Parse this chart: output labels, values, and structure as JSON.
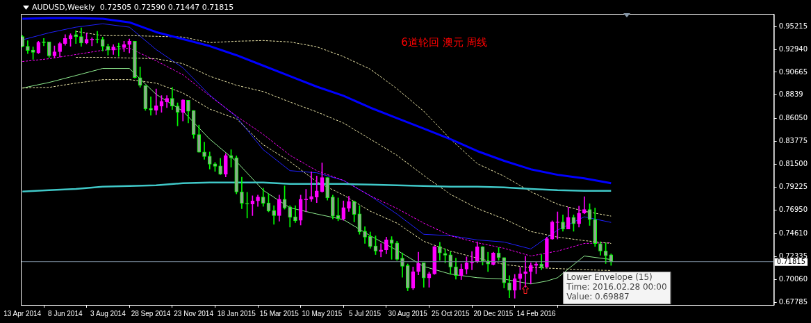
{
  "chart_data": {
    "type": "candlestick",
    "title": "AUDUSD,Weekly  0.72505 0.72590 0.71447 0.71815",
    "annotations": [
      "6道轮回 澳元 周线",
      "Lower Envelope (15)\nTime: 2016.02.28 00:00\nValue: 0.69887"
    ],
    "x": [
      "2014-04-13",
      "2014-04-20",
      "2014-04-27",
      "2014-05-04",
      "2014-05-11",
      "2014-05-18",
      "2014-05-25",
      "2014-06-01",
      "2014-06-08",
      "2014-06-15",
      "2014-06-22",
      "2014-06-29",
      "2014-07-06",
      "2014-07-13",
      "2014-07-20",
      "2014-07-27",
      "2014-08-03",
      "2014-08-10",
      "2014-08-17",
      "2014-08-24",
      "2014-08-31",
      "2014-09-07",
      "2014-09-14",
      "2014-09-21",
      "2014-09-28",
      "2014-10-05",
      "2014-10-12",
      "2014-10-19",
      "2014-10-26",
      "2014-11-02",
      "2014-11-09",
      "2014-11-16",
      "2014-11-23",
      "2014-11-30",
      "2014-12-07",
      "2014-12-14",
      "2014-12-21",
      "2014-12-28",
      "2015-01-04",
      "2015-01-11",
      "2015-01-18",
      "2015-01-25",
      "2015-02-01",
      "2015-02-08",
      "2015-02-15",
      "2015-02-22",
      "2015-03-01",
      "2015-03-08",
      "2015-03-15",
      "2015-03-22",
      "2015-03-29",
      "2015-04-05",
      "2015-04-12",
      "2015-04-19",
      "2015-04-26",
      "2015-05-03",
      "2015-05-10",
      "2015-05-17",
      "2015-05-24",
      "2015-05-31",
      "2015-06-07",
      "2015-06-14",
      "2015-06-21",
      "2015-06-28",
      "2015-07-05",
      "2015-07-12",
      "2015-07-19",
      "2015-07-26",
      "2015-08-02",
      "2015-08-09",
      "2015-08-16",
      "2015-08-23",
      "2015-08-30",
      "2015-09-06",
      "2015-09-13",
      "2015-09-20",
      "2015-09-27",
      "2015-10-04",
      "2015-10-11",
      "2015-10-18",
      "2015-10-25",
      "2015-11-01",
      "2015-11-08",
      "2015-11-15",
      "2015-11-22",
      "2015-11-29",
      "2015-12-06",
      "2015-12-13",
      "2015-12-20",
      "2015-12-27",
      "2016-01-03",
      "2016-01-10",
      "2016-01-17",
      "2016-01-24",
      "2016-01-31",
      "2016-02-07",
      "2016-02-14",
      "2016-02-21",
      "2016-02-28",
      "2016-03-06",
      "2016-03-13",
      "2016-03-20",
      "2016-03-27",
      "2016-04-03",
      "2016-04-10",
      "2016-04-17",
      "2016-04-24",
      "2016-05-01",
      "2016-05-08",
      "2016-05-15",
      "2016-05-22"
    ],
    "ohlc": [
      [
        0.9422,
        0.9433,
        0.9318,
        0.9325
      ],
      [
        0.9325,
        0.938,
        0.9252,
        0.9283
      ],
      [
        0.9287,
        0.9318,
        0.9194,
        0.9264
      ],
      [
        0.9259,
        0.9375,
        0.9252,
        0.9364
      ],
      [
        0.9365,
        0.9403,
        0.9329,
        0.9361
      ],
      [
        0.9368,
        0.9368,
        0.9213,
        0.9229
      ],
      [
        0.9229,
        0.9329,
        0.9208,
        0.9269
      ],
      [
        0.9271,
        0.9364,
        0.9217,
        0.9352
      ],
      [
        0.9352,
        0.944,
        0.9334,
        0.9403
      ],
      [
        0.9398,
        0.945,
        0.9325,
        0.9433
      ],
      [
        0.944,
        0.948,
        0.9352,
        0.9422
      ],
      [
        0.9422,
        0.9508,
        0.9325,
        0.9357
      ],
      [
        0.9357,
        0.9457,
        0.9348,
        0.9394
      ],
      [
        0.9389,
        0.941,
        0.9329,
        0.9391
      ],
      [
        0.9396,
        0.9473,
        0.9357,
        0.9391
      ],
      [
        0.9394,
        0.9417,
        0.9278,
        0.9325
      ],
      [
        0.9325,
        0.9348,
        0.9236,
        0.9287
      ],
      [
        0.9287,
        0.9341,
        0.9243,
        0.9318
      ],
      [
        0.9322,
        0.9357,
        0.9224,
        0.9318
      ],
      [
        0.9313,
        0.9375,
        0.9271,
        0.9341
      ],
      [
        0.9341,
        0.9398,
        0.9259,
        0.9375
      ],
      [
        0.9375,
        0.9375,
        0.9008,
        0.9013
      ],
      [
        0.9013,
        0.912,
        0.8916,
        0.8935
      ],
      [
        0.8935,
        0.8935,
        0.8686,
        0.8702
      ],
      [
        0.8707,
        0.8823,
        0.8639,
        0.8691
      ],
      [
        0.8688,
        0.89,
        0.8644,
        0.8733
      ],
      [
        0.873,
        0.8834,
        0.8667,
        0.8777
      ],
      [
        0.8772,
        0.8834,
        0.8714,
        0.8807
      ],
      [
        0.8807,
        0.8916,
        0.8695,
        0.873
      ],
      [
        0.873,
        0.8761,
        0.8533,
        0.8667
      ],
      [
        0.8667,
        0.8795,
        0.8582,
        0.8791
      ],
      [
        0.8788,
        0.8788,
        0.8563,
        0.8679
      ],
      [
        0.8686,
        0.8686,
        0.8408,
        0.8447
      ],
      [
        0.8447,
        0.854,
        0.827,
        0.827
      ],
      [
        0.8273,
        0.8371,
        0.8199,
        0.8227
      ],
      [
        0.8231,
        0.8273,
        0.8103,
        0.8152
      ],
      [
        0.8155,
        0.8169,
        0.808,
        0.8131
      ],
      [
        0.8134,
        0.8211,
        0.8048,
        0.8053
      ],
      [
        0.8053,
        0.8257,
        0.8025,
        0.8238
      ],
      [
        0.8238,
        0.8296,
        0.8122,
        0.8215
      ],
      [
        0.8215,
        0.8234,
        0.7856,
        0.7874
      ],
      [
        0.7876,
        0.8023,
        0.7709,
        0.7762
      ],
      [
        0.7762,
        0.7872,
        0.7616,
        0.7755
      ],
      [
        0.7755,
        0.7837,
        0.764,
        0.7786
      ],
      [
        0.7786,
        0.7844,
        0.7732,
        0.7825
      ],
      [
        0.7825,
        0.7913,
        0.7732,
        0.7762
      ],
      [
        0.7767,
        0.7856,
        0.7677,
        0.7686
      ],
      [
        0.7691,
        0.7739,
        0.7553,
        0.764
      ],
      [
        0.764,
        0.7844,
        0.7584,
        0.7802
      ],
      [
        0.7802,
        0.7936,
        0.7704,
        0.7716
      ],
      [
        0.7727,
        0.7739,
        0.7526,
        0.7623
      ],
      [
        0.7628,
        0.7739,
        0.757,
        0.7588
      ],
      [
        0.7593,
        0.7844,
        0.7546,
        0.7802
      ],
      [
        0.7797,
        0.7901,
        0.7677,
        0.7804
      ],
      [
        0.7804,
        0.8076,
        0.7779,
        0.783
      ],
      [
        0.7825,
        0.8034,
        0.7769,
        0.7885
      ],
      [
        0.7879,
        0.8164,
        0.7872,
        0.8018
      ],
      [
        0.8018,
        0.8018,
        0.7793,
        0.7816
      ],
      [
        0.7825,
        0.7844,
        0.7607,
        0.7635
      ],
      [
        0.7642,
        0.7816,
        0.7588,
        0.7612
      ],
      [
        0.7607,
        0.7786,
        0.7593,
        0.772
      ],
      [
        0.7713,
        0.7832,
        0.7681,
        0.7781
      ],
      [
        0.7781,
        0.7786,
        0.7577,
        0.7651
      ],
      [
        0.7658,
        0.7739,
        0.7454,
        0.7477
      ],
      [
        0.7484,
        0.753,
        0.7363,
        0.7426
      ],
      [
        0.7433,
        0.7477,
        0.7315,
        0.7333
      ],
      [
        0.7338,
        0.7438,
        0.7252,
        0.7287
      ],
      [
        0.7282,
        0.7361,
        0.7229,
        0.7299
      ],
      [
        0.7299,
        0.7426,
        0.7259,
        0.7398
      ],
      [
        0.7398,
        0.7431,
        0.7205,
        0.7363
      ],
      [
        0.7368,
        0.7384,
        0.7194,
        0.7205
      ],
      [
        0.7217,
        0.7268,
        0.7027,
        0.7136
      ],
      [
        0.7143,
        0.7159,
        0.6892,
        0.692
      ],
      [
        0.692,
        0.7129,
        0.6904,
        0.7083
      ],
      [
        0.7083,
        0.7275,
        0.705,
        0.7163
      ],
      [
        0.717,
        0.717,
        0.6927,
        0.702
      ],
      [
        0.702,
        0.7078,
        0.6927,
        0.7062
      ],
      [
        0.7059,
        0.7333,
        0.7055,
        0.7333
      ],
      [
        0.7333,
        0.7375,
        0.7194,
        0.7268
      ],
      [
        0.7264,
        0.731,
        0.717,
        0.7245
      ],
      [
        0.725,
        0.728,
        0.7055,
        0.7129
      ],
      [
        0.7131,
        0.7217,
        0.7008,
        0.7043
      ],
      [
        0.7043,
        0.7159,
        0.7003,
        0.7108
      ],
      [
        0.7108,
        0.7229,
        0.7059,
        0.717
      ],
      [
        0.717,
        0.7282,
        0.7101,
        0.718
      ],
      [
        0.718,
        0.7379,
        0.717,
        0.7329
      ],
      [
        0.7329,
        0.7333,
        0.7148,
        0.7187
      ],
      [
        0.7187,
        0.7275,
        0.7083,
        0.7157
      ],
      [
        0.7152,
        0.7275,
        0.7148,
        0.7268
      ],
      [
        0.7268,
        0.7322,
        0.7194,
        0.7222
      ],
      [
        0.7222,
        0.7222,
        0.692,
        0.6971
      ],
      [
        0.6971,
        0.7043,
        0.6822,
        0.6897
      ],
      [
        0.6897,
        0.7055,
        0.6818,
        0.7013
      ],
      [
        0.7013,
        0.7125,
        0.6904,
        0.7062
      ],
      [
        0.7062,
        0.7236,
        0.6927,
        0.7083
      ],
      [
        0.7083,
        0.717,
        0.6962,
        0.7147
      ],
      [
        0.7143,
        0.7177,
        0.7062,
        0.7159
      ],
      [
        0.7159,
        0.7252,
        0.7101,
        0.7129
      ],
      [
        0.7129,
        0.7426,
        0.7124,
        0.741
      ],
      [
        0.7407,
        0.7588,
        0.7403,
        0.7577
      ],
      [
        0.757,
        0.7677,
        0.7407,
        0.7577
      ],
      [
        0.7577,
        0.7647,
        0.7484,
        0.7507
      ],
      [
        0.7507,
        0.7723,
        0.7507,
        0.7623
      ],
      [
        0.7623,
        0.7647,
        0.7484,
        0.7558
      ],
      [
        0.7558,
        0.7734,
        0.7526,
        0.7665
      ],
      [
        0.7665,
        0.7828,
        0.7658,
        0.77
      ],
      [
        0.77,
        0.7758,
        0.7542,
        0.76
      ],
      [
        0.76,
        0.7716,
        0.7333,
        0.7361
      ],
      [
        0.7361,
        0.7379,
        0.7245,
        0.7287
      ],
      [
        0.7287,
        0.7368,
        0.7163,
        0.724
      ],
      [
        0.72505,
        0.7259,
        0.71447,
        0.71815
      ]
    ],
    "series": [
      {
        "type": "line",
        "color": "#0000ff",
        "x": [
          "2014-04-13",
          "2014-05-18",
          "2014-06-22",
          "2014-07-27",
          "2014-08-31",
          "2014-10-05",
          "2014-11-09",
          "2014-12-14",
          "2015-01-18",
          "2015-02-22",
          "2015-03-29",
          "2015-05-03",
          "2015-06-07",
          "2015-07-12",
          "2015-08-16",
          "2015-09-20",
          "2015-10-25",
          "2015-11-29",
          "2016-01-03",
          "2016-02-07",
          "2016-03-13",
          "2016-04-17",
          "2016-05-22"
        ],
        "values": [
          0.9598,
          0.9605,
          0.9605,
          0.9598,
          0.9563,
          0.9466,
          0.9396,
          0.9327,
          0.9236,
          0.9132,
          0.9027,
          0.8923,
          0.8832,
          0.8714,
          0.861,
          0.8505,
          0.8401,
          0.8282,
          0.8185,
          0.8101,
          0.8046,
          0.8011,
          0.7962
        ]
      },
      {
        "type": "line",
        "color": "#40c8c8",
        "x": [
          "2014-04-13",
          "2014-05-18",
          "2014-06-22",
          "2014-07-27",
          "2014-08-31",
          "2014-10-05",
          "2014-11-09",
          "2014-12-14",
          "2015-01-18",
          "2015-02-22",
          "2015-03-29",
          "2015-05-03",
          "2015-06-07",
          "2015-07-12",
          "2015-08-16",
          "2015-09-20",
          "2015-10-25",
          "2015-11-29",
          "2016-01-03",
          "2016-02-07",
          "2016-03-13",
          "2016-04-17",
          "2016-05-22"
        ],
        "values": [
          0.7879,
          0.7893,
          0.7906,
          0.7927,
          0.7934,
          0.7941,
          0.7962,
          0.7969,
          0.7969,
          0.7969,
          0.7955,
          0.7955,
          0.7955,
          0.7948,
          0.7941,
          0.7934,
          0.7927,
          0.7927,
          0.792,
          0.7906,
          0.7893,
          0.7886,
          0.7886
        ]
      },
      {
        "type": "line",
        "color": "#eee8aa",
        "line_style": "dashed",
        "x": [
          "2014-06-22",
          "2014-07-27",
          "2014-08-31",
          "2014-10-05",
          "2014-11-09",
          "2014-12-14",
          "2015-01-18",
          "2015-02-22",
          "2015-03-29",
          "2015-05-03",
          "2015-06-07",
          "2015-07-12",
          "2015-08-16",
          "2015-09-20",
          "2015-10-25",
          "2015-11-29",
          "2016-01-03",
          "2016-02-07",
          "2016-03-13",
          "2016-04-17",
          "2016-05-22"
        ],
        "values": [
          0.9473,
          0.9431,
          0.9431,
          0.9424,
          0.9417,
          0.9361,
          0.9375,
          0.9382,
          0.9368,
          0.932,
          0.9222,
          0.9097,
          0.8902,
          0.8679,
          0.8401,
          0.8157,
          0.8032,
          0.7878,
          0.7753,
          0.7683,
          0.7635
        ]
      },
      {
        "type": "line",
        "color": "#eee8aa",
        "line_style": "dashed",
        "x": [
          "2014-06-22",
          "2014-07-27",
          "2014-08-31",
          "2014-10-05",
          "2014-11-09",
          "2014-12-14",
          "2015-01-18",
          "2015-02-22",
          "2015-03-29",
          "2015-05-03",
          "2015-06-07",
          "2015-07-12",
          "2015-08-16",
          "2015-09-20",
          "2015-10-25",
          "2015-11-29",
          "2016-01-03",
          "2016-02-07",
          "2016-03-13",
          "2016-04-17",
          "2016-05-22"
        ],
        "values": [
          0.9215,
          0.9215,
          0.9208,
          0.9201,
          0.9152,
          0.9027,
          0.8937,
          0.8874,
          0.877,
          0.8672,
          0.8561,
          0.8401,
          0.824,
          0.8039,
          0.7851,
          0.7711,
          0.7607,
          0.7482,
          0.7426,
          0.7391,
          0.7363
        ]
      },
      {
        "type": "line",
        "color": "#eee8aa",
        "line_style": "dashed",
        "x": [
          "2014-04-13",
          "2014-05-18",
          "2014-06-22",
          "2014-07-27",
          "2014-08-31",
          "2014-10-05",
          "2014-11-09",
          "2014-12-14",
          "2015-01-18",
          "2015-02-22",
          "2015-03-29",
          "2015-05-03",
          "2015-06-07",
          "2015-07-12",
          "2015-08-16",
          "2015-09-20",
          "2015-10-25",
          "2015-11-29",
          "2016-01-03",
          "2016-02-03",
          "2016-03-13",
          "2016-04-17",
          "2016-05-22"
        ],
        "values": [
          0.8909,
          0.8916,
          0.8958,
          0.8993,
          0.8993,
          0.8958,
          0.886,
          0.87,
          0.8603,
          0.8345,
          0.8178,
          0.7976,
          0.7844,
          0.7684,
          0.7565,
          0.7384,
          0.7287,
          0.7217,
          0.7154,
          0.7126,
          0.7113,
          0.7101,
          0.7094
        ]
      },
      {
        "type": "line",
        "color": "#ff00ff",
        "line_style": "dashed",
        "x": [
          "2014-04-13",
          "2014-05-18",
          "2014-06-22",
          "2014-07-27",
          "2014-08-31",
          "2014-10-05",
          "2014-11-09",
          "2014-12-14",
          "2015-01-18",
          "2015-02-22",
          "2015-03-29",
          "2015-05-03",
          "2015-06-07",
          "2015-07-12",
          "2015-08-16",
          "2015-09-20",
          "2015-10-25",
          "2015-11-29",
          "2016-01-03",
          "2016-02-07",
          "2016-03-13",
          "2016-04-17",
          "2016-05-22"
        ],
        "values": [
          0.9173,
          0.9201,
          0.9243,
          0.9285,
          0.9306,
          0.918,
          0.9041,
          0.8832,
          0.863,
          0.8449,
          0.824,
          0.8087,
          0.799,
          0.7837,
          0.7711,
          0.7565,
          0.744,
          0.737,
          0.7315,
          0.7238,
          0.7287,
          0.7363,
          0.737
        ]
      },
      {
        "type": "line",
        "color": "#2020ff",
        "x": [
          "2014-04-13",
          "2014-05-18",
          "2014-06-22",
          "2014-07-27",
          "2014-08-31",
          "2014-10-05",
          "2014-11-09",
          "2014-12-14",
          "2015-01-18",
          "2015-02-22",
          "2015-03-29",
          "2015-05-03",
          "2015-06-07",
          "2015-07-12",
          "2015-08-16",
          "2015-09-20",
          "2015-10-25",
          "2015-11-29",
          "2016-01-03",
          "2016-02-07",
          "2016-03-13",
          "2016-04-17",
          "2016-05-22"
        ],
        "values": [
          0.9389,
          0.9459,
          0.9515,
          0.9549,
          0.9515,
          0.9292,
          0.9111,
          0.8839,
          0.8623,
          0.8296,
          0.8087,
          0.8066,
          0.799,
          0.7837,
          0.7655,
          0.7454,
          0.744,
          0.7398,
          0.7377,
          0.7308,
          0.7496,
          0.7628,
          0.7572
        ]
      },
      {
        "type": "line",
        "color": "#90ee90",
        "x": [
          "2014-04-13",
          "2014-05-18",
          "2014-06-22",
          "2014-07-27",
          "2014-08-31",
          "2014-10-05",
          "2014-11-09",
          "2014-12-14",
          "2015-01-18",
          "2015-02-22",
          "2015-03-29",
          "2015-05-03",
          "2015-06-07",
          "2015-07-12",
          "2015-08-16",
          "2015-09-20",
          "2015-10-25",
          "2015-11-29",
          "2016-01-03",
          "2016-02-07",
          "2016-02-28",
          "2016-03-13",
          "2016-04-17",
          "2016-05-22"
        ],
        "values": [
          0.8909,
          0.8965,
          0.9034,
          0.9104,
          0.9104,
          0.8846,
          0.8679,
          0.8401,
          0.8178,
          0.7892,
          0.7718,
          0.7656,
          0.76,
          0.744,
          0.7294,
          0.7134,
          0.7058,
          0.7022,
          0.7008,
          0.696,
          0.6989,
          0.7022,
          0.7238,
          0.7203
        ]
      }
    ],
    "xlim": [
      "2014-04-11",
      "2016-12-21"
    ],
    "xticks": [
      {
        "value": "2014-04-13",
        "label": "13 Apr 2014"
      },
      {
        "value": "2014-06-08",
        "label": "8 Jun 2014"
      },
      {
        "value": "2014-08-03",
        "label": "3 Aug 2014"
      },
      {
        "value": "2014-09-28",
        "label": "28 Sep 2014"
      },
      {
        "value": "2014-11-23",
        "label": "23 Nov 2014"
      },
      {
        "value": "2015-01-18",
        "label": "18 Jan 2015"
      },
      {
        "value": "2015-03-15",
        "label": "15 Mar 2015"
      },
      {
        "value": "2015-05-10",
        "label": "10 May 2015"
      },
      {
        "value": "2015-07-05",
        "label": "5 Jul 2015"
      },
      {
        "value": "2015-08-30",
        "label": "30 Aug 2015"
      },
      {
        "value": "2015-10-25",
        "label": "25 Oct 2015"
      },
      {
        "value": "2015-12-20",
        "label": "20 Dec 2015"
      },
      {
        "value": "2016-02-14",
        "label": "14 Feb 2016"
      }
    ],
    "ylim": [
      0.6751,
      0.9647
    ],
    "yticks": [
      0.95215,
      {
        "value": 0.9294,
        "label": "0.92940"
      },
      0.90665,
      0.8839,
      {
        "value": 0.8605,
        "label": "0.86050"
      },
      0.83775,
      {
        "value": 0.815,
        "label": "0.81500"
      },
      0.79225,
      {
        "value": 0.7695,
        "label": "0.76950"
      },
      {
        "value": 0.7461,
        "label": "0.74610"
      },
      0.72335,
      {
        "value": 0.7006,
        "label": "0.70060"
      },
      0.67785
    ],
    "ref_lines": [
      {
        "axis": "y",
        "value": 0.71815,
        "label": "0.71815",
        "color": "#778899"
      }
    ]
  }
}
